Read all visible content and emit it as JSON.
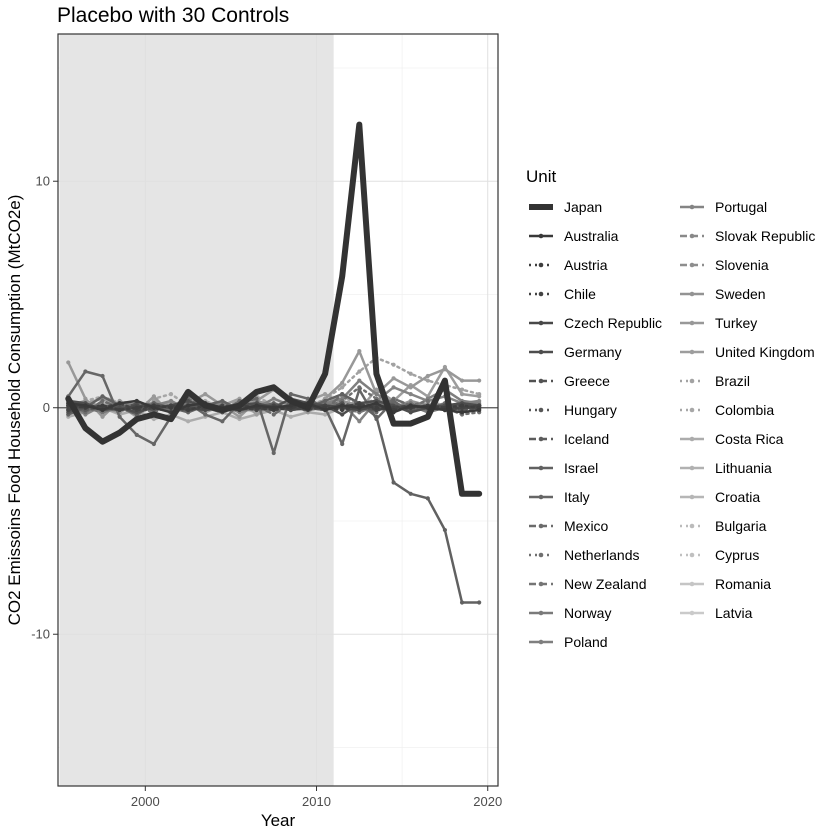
{
  "chart_data": {
    "type": "line",
    "title": "Placebo with 30 Controls",
    "xlabel": "Year",
    "ylabel": "CO2 Emissoins Food Household Consumption  (MtCO2e)",
    "xlim": [
      1994.9,
      2020.6
    ],
    "ylim": [
      -16.7,
      16.5
    ],
    "xticks": [
      2000,
      2010,
      2020
    ],
    "yticks": [
      -10,
      0,
      10
    ],
    "shaded_region": [
      1995,
      2011
    ],
    "grid": true,
    "legend_title": "Unit",
    "legend_position": "right",
    "x": [
      1995.5,
      1996.5,
      1997.5,
      1998.5,
      1999.5,
      2000.5,
      2001.5,
      2002.5,
      2003.5,
      2004.5,
      2005.5,
      2006.5,
      2007.5,
      2008.5,
      2009.5,
      2010.5,
      2011.5,
      2012.5,
      2013.5,
      2014.5,
      2015.5,
      2016.5,
      2017.5,
      2018.5,
      2019.5
    ],
    "series": [
      {
        "name": "Japan",
        "style": "solid",
        "width": 6,
        "color": "#333333",
        "values": [
          0.4,
          -0.9,
          -1.5,
          -1.1,
          -0.5,
          -0.3,
          -0.5,
          0.7,
          0.1,
          -0.1,
          0.1,
          0.7,
          0.9,
          0.3,
          0.0,
          1.5,
          5.8,
          12.5,
          1.5,
          -0.7,
          -0.7,
          -0.4,
          1.2,
          -3.8,
          -3.8
        ]
      },
      {
        "name": "Australia",
        "style": "solid",
        "width": 2.5,
        "color": "#393939",
        "values": [
          0.2,
          0.1,
          -0.1,
          0.2,
          0.3,
          0.0,
          -0.2,
          0.1,
          0.2,
          0.0,
          -0.1,
          0.1,
          0.0,
          0.1,
          0.2,
          -0.1,
          0.1,
          0.0,
          0.2,
          -0.2,
          0.1,
          0.0,
          -0.1,
          -0.2,
          -0.1
        ]
      },
      {
        "name": "Austria",
        "style": "dotted",
        "width": 2.5,
        "color": "#3e3e3e",
        "values": [
          0.1,
          0.0,
          0.1,
          -0.1,
          0.0,
          0.1,
          0.0,
          -0.1,
          0.1,
          0.0,
          0.1,
          0.0,
          -0.1,
          0.0,
          0.1,
          0.0,
          -0.1,
          0.1,
          0.0,
          -0.1,
          0.0,
          0.1,
          0.0,
          0.1,
          0.0
        ]
      },
      {
        "name": "Chile",
        "style": "dotted",
        "width": 2.5,
        "color": "#434343",
        "values": [
          -0.1,
          0.1,
          0.0,
          0.2,
          -0.1,
          0.0,
          0.1,
          -0.1,
          0.0,
          0.1,
          0.0,
          -0.1,
          0.1,
          0.0,
          -0.1,
          0.1,
          0.0,
          0.2,
          -0.1,
          0.0,
          0.1,
          0.0,
          -0.1,
          0.0,
          0.1
        ]
      },
      {
        "name": "Czech Republic",
        "style": "solid",
        "width": 2.5,
        "color": "#484848",
        "values": [
          0.0,
          0.1,
          0.0,
          -0.1,
          0.1,
          0.0,
          0.1,
          0.0,
          -0.1,
          0.0,
          0.1,
          0.0,
          0.1,
          -0.1,
          0.0,
          0.1,
          0.0,
          -0.1,
          0.1,
          0.0,
          0.0,
          0.1,
          -0.1,
          0.0,
          0.0
        ]
      },
      {
        "name": "Germany",
        "style": "solid",
        "width": 2.5,
        "color": "#4d4d4d",
        "values": [
          0.3,
          0.2,
          -0.1,
          0.0,
          -0.2,
          0.0,
          0.1,
          0.3,
          0.0,
          -0.2,
          0.1,
          0.2,
          0.0,
          0.4,
          0.2,
          0.1,
          -0.3,
          0.2,
          0.3,
          0.1,
          -0.2,
          0.0,
          0.1,
          0.2,
          0.1
        ]
      },
      {
        "name": "Greece",
        "style": "dashed",
        "width": 2.5,
        "color": "#525252",
        "values": [
          -0.2,
          0.1,
          0.0,
          -0.1,
          0.2,
          0.1,
          0.0,
          -0.1,
          0.1,
          0.0,
          0.1,
          -0.1,
          0.0,
          0.1,
          0.0,
          -0.1,
          0.2,
          0.0,
          -0.1,
          0.1,
          0.0,
          0.1,
          -0.1,
          0.0,
          0.0
        ]
      },
      {
        "name": "Hungary",
        "style": "dotted",
        "width": 2.5,
        "color": "#575757",
        "values": [
          0.1,
          -0.1,
          0.0,
          0.1,
          0.0,
          -0.1,
          0.1,
          0.0,
          0.1,
          -0.1,
          0.0,
          0.1,
          0.0,
          -0.1,
          0.1,
          0.0,
          0.1,
          0.0,
          -0.1,
          0.0,
          0.1,
          0.0,
          0.1,
          -0.1,
          0.0
        ]
      },
      {
        "name": "Iceland",
        "style": "dashed",
        "width": 2.5,
        "color": "#5c5c5c",
        "values": [
          0.0,
          0.0,
          0.1,
          0.0,
          -0.1,
          0.0,
          0.0,
          0.1,
          0.0,
          0.0,
          -0.1,
          0.0,
          0.1,
          0.0,
          0.0,
          -0.1,
          0.0,
          0.1,
          0.0,
          0.0,
          -0.1,
          0.0,
          0.0,
          0.1,
          0.0
        ]
      },
      {
        "name": "Israel",
        "style": "solid",
        "width": 2.5,
        "color": "#616161",
        "values": [
          -0.3,
          0.0,
          0.5,
          0.1,
          -0.3,
          0.2,
          0.0,
          -0.2,
          0.1,
          0.3,
          -0.1,
          0.0,
          0.2,
          -0.1,
          0.0,
          0.3,
          0.6,
          0.2,
          -0.4,
          -3.3,
          -3.8,
          -4.0,
          -5.4,
          -8.6,
          -8.6
        ]
      },
      {
        "name": "Italy",
        "style": "solid",
        "width": 2.5,
        "color": "#666666",
        "values": [
          0.5,
          1.6,
          1.4,
          -0.4,
          -1.2,
          -1.6,
          -0.4,
          0.2,
          -0.3,
          -0.6,
          0.2,
          0.4,
          -2.0,
          0.6,
          0.4,
          0.0,
          -1.6,
          0.8,
          -0.5,
          0.3,
          -0.2,
          0.1,
          0.0,
          0.2,
          0.1
        ]
      },
      {
        "name": "Mexico",
        "style": "dashed",
        "width": 2.5,
        "color": "#6b6b6b",
        "values": [
          0.2,
          -0.2,
          0.3,
          0.0,
          -0.3,
          0.2,
          -0.1,
          0.4,
          0.0,
          -0.2,
          0.3,
          0.1,
          -0.3,
          0.2,
          0.0,
          -0.1,
          0.6,
          0.2,
          -0.2,
          0.4,
          0.1,
          -0.1,
          0.2,
          0.0,
          0.1
        ]
      },
      {
        "name": "Netherlands",
        "style": "dotted",
        "width": 2.5,
        "color": "#707070",
        "values": [
          0.0,
          0.2,
          -0.1,
          0.1,
          0.0,
          -0.2,
          0.1,
          0.0,
          0.2,
          -0.1,
          0.0,
          0.1,
          0.0,
          -0.1,
          0.2,
          0.0,
          0.3,
          0.9,
          0.4,
          -0.2,
          0.1,
          0.3,
          0.0,
          -0.3,
          -0.2
        ]
      },
      {
        "name": "New Zealand",
        "style": "dashed",
        "width": 2.5,
        "color": "#757575",
        "values": [
          0.1,
          0.0,
          -0.2,
          0.1,
          0.0,
          0.1,
          -0.1,
          0.0,
          0.2,
          0.0,
          -0.1,
          0.0,
          0.1,
          0.0,
          -0.1,
          0.1,
          0.0,
          -0.2,
          0.1,
          0.0,
          0.2,
          -0.1,
          0.0,
          0.1,
          0.0
        ]
      },
      {
        "name": "Norway",
        "style": "solid",
        "width": 2.5,
        "color": "#7a7a7a",
        "values": [
          -0.1,
          0.1,
          0.0,
          0.2,
          0.1,
          -0.1,
          0.0,
          0.1,
          -0.1,
          0.0,
          0.2,
          0.0,
          -0.1,
          0.1,
          0.0,
          0.2,
          0.1,
          -0.1,
          0.3,
          0.0,
          0.1,
          -0.2,
          0.0,
          0.1,
          0.0
        ]
      },
      {
        "name": "Poland",
        "style": "solid",
        "width": 2.5,
        "color": "#7f7f7f",
        "values": [
          0.3,
          0.1,
          -0.2,
          0.0,
          0.1,
          0.2,
          -0.1,
          0.3,
          0.0,
          0.1,
          -0.2,
          0.0,
          0.4,
          0.1,
          0.0,
          0.2,
          0.4,
          1.2,
          0.6,
          0.2,
          -0.1,
          0.4,
          0.8,
          0.3,
          0.2
        ]
      },
      {
        "name": "Portugal",
        "style": "solid",
        "width": 2.5,
        "color": "#848484",
        "values": [
          0.2,
          -0.3,
          0.1,
          0.0,
          -0.2,
          0.1,
          0.3,
          -0.1,
          0.0,
          0.2,
          -0.1,
          0.0,
          0.1,
          -0.1,
          0.2,
          0.0,
          0.2,
          -0.6,
          0.3,
          0.9,
          0.6,
          0.3,
          0.5,
          0.2,
          0.3
        ]
      },
      {
        "name": "Slovak Republic",
        "style": "dashed",
        "width": 2.5,
        "color": "#898989",
        "values": [
          0.0,
          0.1,
          -0.1,
          0.0,
          0.1,
          0.0,
          -0.1,
          0.1,
          0.0,
          -0.1,
          0.0,
          0.1,
          0.0,
          0.1,
          -0.1,
          0.0,
          0.1,
          0.0,
          -0.1,
          0.1,
          0.0,
          0.0,
          0.1,
          -0.1,
          0.0
        ]
      },
      {
        "name": "Slovenia",
        "style": "dashed",
        "width": 2.5,
        "color": "#8e8e8e",
        "values": [
          -0.1,
          0.0,
          0.1,
          -0.1,
          0.0,
          0.1,
          0.0,
          -0.1,
          0.1,
          0.0,
          -0.1,
          0.0,
          0.1,
          0.0,
          -0.1,
          0.1,
          0.0,
          -0.1,
          0.0,
          0.1,
          0.0,
          -0.1,
          0.0,
          0.0,
          0.1
        ]
      },
      {
        "name": "Sweden",
        "style": "solid",
        "width": 2.5,
        "color": "#939393",
        "values": [
          0.1,
          0.3,
          0.0,
          -0.2,
          0.2,
          0.0,
          0.3,
          -0.1,
          0.1,
          0.2,
          0.0,
          0.3,
          0.1,
          -0.1,
          0.2,
          0.0,
          0.3,
          0.1,
          0.2,
          0.0,
          0.3,
          0.1,
          -0.1,
          0.2,
          0.1
        ]
      },
      {
        "name": "Turkey",
        "style": "solid",
        "width": 2.5,
        "color": "#989898",
        "values": [
          2.0,
          0.4,
          -0.4,
          0.3,
          -0.2,
          0.5,
          -0.3,
          0.2,
          0.6,
          0.1,
          -0.4,
          0.3,
          0.8,
          0.2,
          -0.2,
          0.4,
          1.1,
          2.5,
          0.6,
          1.3,
          0.9,
          1.4,
          1.7,
          1.2,
          1.2
        ]
      },
      {
        "name": "United Kingdom",
        "style": "solid",
        "width": 2.5,
        "color": "#9d9d9d",
        "values": [
          -0.3,
          0.2,
          0.4,
          0.1,
          -0.4,
          0.3,
          0.0,
          0.5,
          -0.2,
          0.1,
          0.4,
          -0.3,
          0.2,
          0.0,
          0.3,
          0.6,
          0.2,
          -0.1,
          0.8,
          0.3,
          1.0,
          0.5,
          1.8,
          0.6,
          0.5
        ]
      },
      {
        "name": "Brazil",
        "style": "dotted",
        "width": 2.5,
        "color": "#a2a2a2",
        "values": [
          0.2,
          0.0,
          -0.1,
          0.3,
          0.1,
          0.0,
          0.2,
          -0.2,
          0.1,
          0.0,
          0.3,
          0.1,
          -0.1,
          0.2,
          0.0,
          0.4,
          0.9,
          1.6,
          2.2,
          1.9,
          1.5,
          1.2,
          1.0,
          0.8,
          0.6
        ]
      },
      {
        "name": "Colombia",
        "style": "dotted",
        "width": 2.5,
        "color": "#a7a7a7",
        "values": [
          0.0,
          0.3,
          0.5,
          0.2,
          0.0,
          0.4,
          0.6,
          0.1,
          0.3,
          0.0,
          0.2,
          0.5,
          0.1,
          0.3,
          0.0,
          0.2,
          0.5,
          0.1,
          0.4,
          0.2,
          0.0,
          0.3,
          0.1,
          0.2,
          0.0
        ]
      },
      {
        "name": "Costa Rica",
        "style": "solid",
        "width": 2.5,
        "color": "#acacac",
        "values": [
          -0.4,
          -0.2,
          0.0,
          -0.3,
          -0.1,
          -0.5,
          -0.3,
          -0.6,
          -0.4,
          -0.2,
          -0.5,
          -0.3,
          -0.1,
          -0.4,
          -0.2,
          -0.3,
          0.0,
          -0.2,
          0.1,
          -0.1,
          0.0,
          0.2,
          0.0,
          0.1,
          -0.1
        ]
      },
      {
        "name": "Lithuania",
        "style": "solid",
        "width": 2.5,
        "color": "#b1b1b1",
        "values": [
          0.1,
          -0.1,
          0.2,
          0.0,
          -0.2,
          0.1,
          0.0,
          -0.1,
          0.2,
          0.1,
          0.0,
          -0.2,
          0.1,
          0.0,
          0.2,
          -0.1,
          0.0,
          0.1,
          -0.1,
          0.2,
          0.0,
          0.1,
          0.0,
          -0.1,
          0.1
        ]
      },
      {
        "name": "Croatia",
        "style": "solid",
        "width": 2.5,
        "color": "#b6b6b6",
        "values": [
          0.0,
          0.2,
          0.1,
          -0.1,
          0.0,
          0.2,
          0.1,
          0.0,
          -0.1,
          0.2,
          0.0,
          0.1,
          0.0,
          0.2,
          -0.1,
          0.0,
          0.1,
          0.2,
          0.0,
          -0.1,
          0.1,
          0.0,
          0.2,
          0.0,
          0.1
        ]
      },
      {
        "name": "Bulgaria",
        "style": "dotted",
        "width": 2.5,
        "color": "#bbbbbb",
        "values": [
          0.1,
          0.0,
          0.2,
          0.1,
          -0.1,
          0.0,
          0.1,
          0.2,
          0.0,
          0.1,
          -0.1,
          0.0,
          0.2,
          0.1,
          0.0,
          -0.1,
          0.1,
          0.0,
          0.2,
          0.1,
          0.0,
          0.1,
          -0.1,
          0.0,
          0.1
        ]
      },
      {
        "name": "Cyprus",
        "style": "dotted",
        "width": 2.5,
        "color": "#c0c0c0",
        "values": [
          0.0,
          0.1,
          0.0,
          0.1,
          0.0,
          -0.1,
          0.0,
          0.1,
          0.0,
          0.0,
          0.1,
          0.0,
          -0.1,
          0.0,
          0.1,
          0.0,
          0.0,
          0.1,
          0.0,
          -0.1,
          0.0,
          0.1,
          0.0,
          0.0,
          0.1
        ]
      },
      {
        "name": "Romania",
        "style": "solid",
        "width": 2.5,
        "color": "#c5c5c5",
        "values": [
          0.2,
          0.0,
          -0.2,
          0.1,
          0.3,
          0.0,
          -0.1,
          0.2,
          0.1,
          -0.2,
          0.0,
          0.3,
          0.1,
          -0.1,
          0.2,
          0.0,
          0.1,
          -0.2,
          0.2,
          0.0,
          0.1,
          0.2,
          -0.1,
          0.0,
          0.1
        ]
      },
      {
        "name": "Latvia",
        "style": "solid",
        "width": 2.5,
        "color": "#cacaca",
        "values": [
          -0.1,
          0.1,
          0.0,
          -0.1,
          0.1,
          0.0,
          0.2,
          0.0,
          -0.1,
          0.1,
          0.0,
          -0.1,
          0.1,
          0.0,
          0.0,
          0.1,
          -0.1,
          0.0,
          0.1,
          0.0,
          -0.1,
          0.1,
          0.0,
          0.0,
          0.0
        ]
      }
    ]
  }
}
